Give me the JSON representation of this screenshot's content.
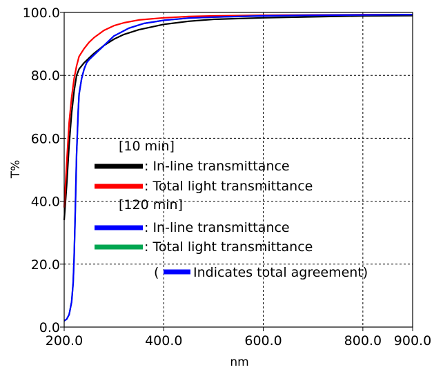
{
  "chart_data": {
    "type": "line",
    "title": "",
    "xlabel": "nm",
    "ylabel": "T%",
    "xlim": [
      200,
      900
    ],
    "ylim": [
      0,
      100
    ],
    "x_ticks": [
      200,
      400,
      600,
      800,
      900
    ],
    "x_tick_labels": [
      "200.0",
      "400.0",
      "600.0",
      "800.0",
      "900.0"
    ],
    "y_ticks": [
      0,
      20,
      40,
      60,
      80,
      100
    ],
    "y_tick_labels": [
      "0.0",
      "20.0",
      "40.0",
      "60.0",
      "80.0",
      "100.0"
    ],
    "grid": true,
    "series": [
      {
        "name": "[10 min] In-line transmittance",
        "color": "#000000",
        "x": [
          200,
          205,
          210,
          215,
          220,
          225,
          230,
          240,
          250,
          260,
          280,
          300,
          320,
          350,
          400,
          450,
          500,
          600,
          700,
          800,
          900
        ],
        "y": [
          34,
          45,
          58,
          68,
          75,
          80,
          82,
          84,
          85.5,
          87,
          89.5,
          91.5,
          93,
          94.5,
          96.2,
          97.2,
          97.8,
          98.3,
          98.6,
          98.9,
          99
        ]
      },
      {
        "name": "[10 min] Total light transmittance",
        "color": "#ff0000",
        "x": [
          200,
          205,
          210,
          215,
          220,
          225,
          230,
          240,
          250,
          260,
          280,
          300,
          320,
          350,
          400,
          450,
          500,
          600,
          700,
          800,
          900
        ],
        "y": [
          38,
          52,
          65,
          73,
          79,
          83,
          86,
          88.5,
          90.5,
          92,
          94.3,
          95.8,
          96.7,
          97.6,
          98.3,
          98.7,
          98.9,
          99.1,
          99.2,
          99.3,
          99.3
        ]
      },
      {
        "name": "[120 min] In-line transmittance",
        "color": "#0000ff",
        "x": [
          200,
          205,
          210,
          215,
          218,
          220,
          222,
          225,
          228,
          230,
          235,
          240,
          245,
          250,
          260,
          280,
          300,
          330,
          360,
          400,
          450,
          500,
          600,
          700,
          800,
          900
        ],
        "y": [
          2,
          2.5,
          4,
          8,
          14,
          22,
          35,
          55,
          68,
          74,
          79,
          82,
          84,
          85,
          86.5,
          89.5,
          92.5,
          95,
          96.5,
          97.5,
          98.2,
          98.5,
          98.9,
          99.1,
          99.2,
          99.3
        ]
      },
      {
        "name": "[120 min] Total light transmittance",
        "color": "#00a651",
        "x": [
          200,
          205,
          210,
          215,
          218,
          220,
          222,
          225,
          228,
          230,
          235,
          240,
          245,
          250,
          260,
          280,
          300,
          330,
          360,
          400,
          450,
          500,
          600,
          700,
          800,
          900
        ],
        "y": [
          2,
          2.5,
          4,
          8,
          14,
          22,
          35,
          55,
          68,
          74,
          79,
          82,
          84,
          85,
          86.5,
          89.5,
          92.5,
          95,
          96.5,
          97.5,
          98.2,
          98.5,
          98.9,
          99.1,
          99.2,
          99.3
        ]
      }
    ],
    "legend": {
      "placement": "center-left",
      "entries": [
        {
          "heading": "[10 min]"
        },
        {
          "color": "#000000",
          "label": ": In-line transmittance"
        },
        {
          "color": "#ff0000",
          "label": ": Total light transmittance"
        },
        {
          "heading": "[120 min]"
        },
        {
          "color": "#0000ff",
          "label": ": In-line transmittance"
        },
        {
          "color": "#00a651",
          "label": ": Total light transmittance"
        }
      ],
      "note_open": "(",
      "note_color": "#0000ff",
      "note_text": "Indicates total agreement)"
    }
  }
}
